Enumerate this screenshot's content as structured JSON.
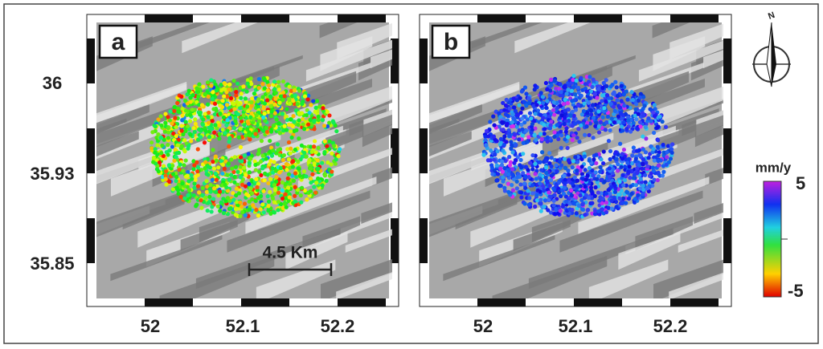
{
  "panels": [
    {
      "label": "a"
    },
    {
      "label": "b"
    }
  ],
  "y_ticks": [
    36,
    35.93,
    35.85
  ],
  "x_ticks": [
    52,
    52.1,
    52.2
  ],
  "scale_bar": "4.5 Km",
  "colorbar": {
    "unit": "mm/y",
    "max": 5,
    "min": -5
  },
  "north": "N"
}
